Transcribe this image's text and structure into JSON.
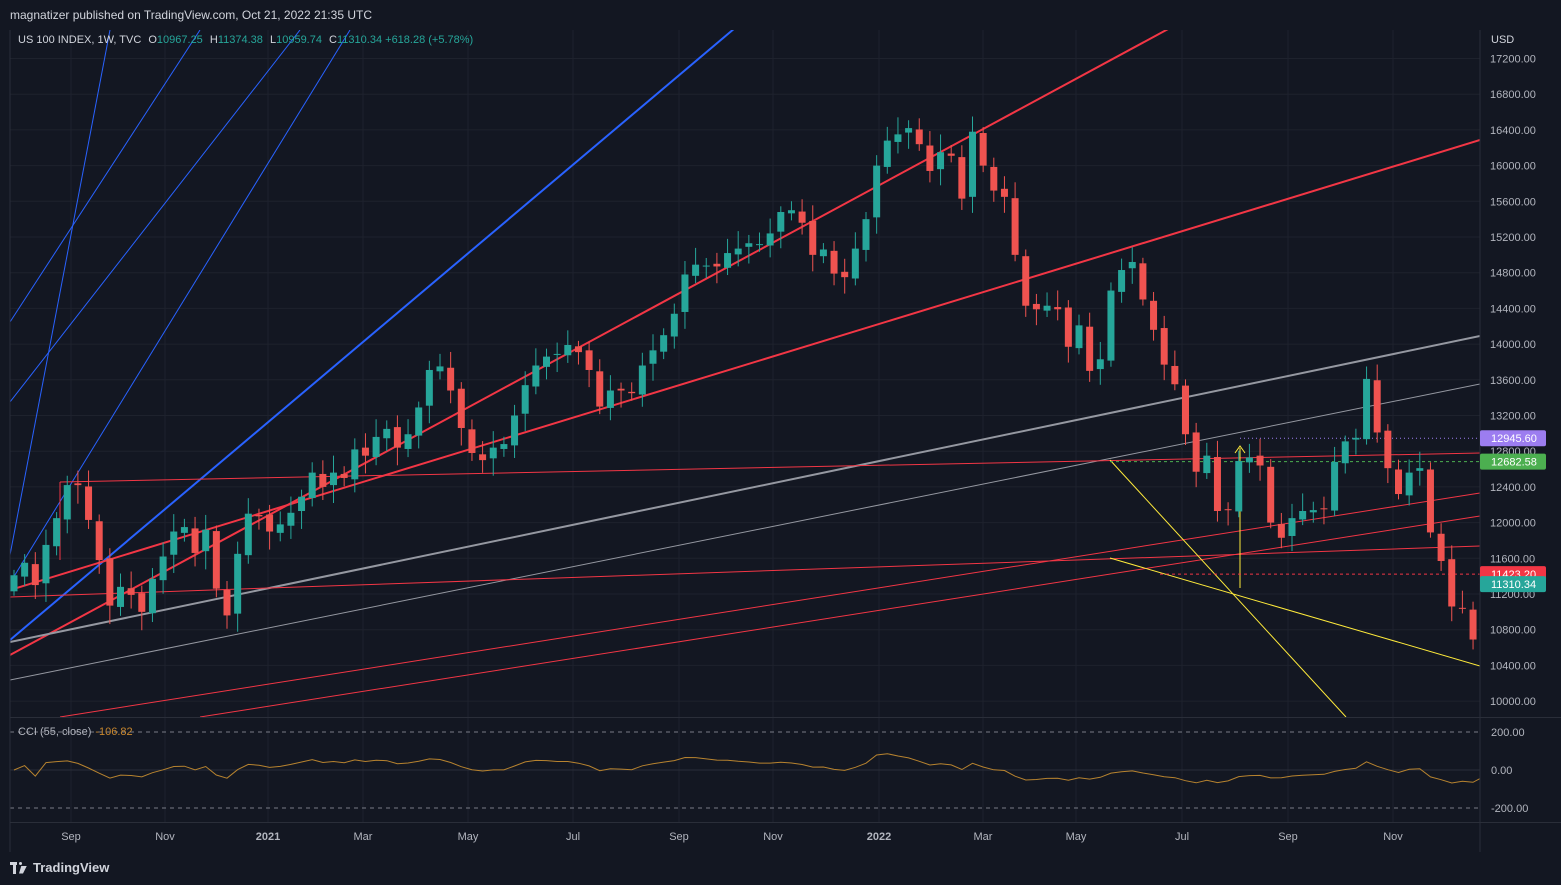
{
  "header": {
    "published": "magnatizer published on TradingView.com, Oct 21, 2022 21:35 UTC"
  },
  "legend": {
    "symbol": "US 100 INDEX, 1W, TVC",
    "o_key": "O",
    "o_val": "10967.25",
    "h_key": "H",
    "h_val": "11374.38",
    "l_key": "L",
    "l_val": "10959.74",
    "c_key": "C",
    "c_val": "11310.34",
    "change": "+618.28 (+5.78%)"
  },
  "cci": {
    "label": "CCI (55, close)",
    "value": "-106.82",
    "ticks": [
      "200.00",
      "0.00",
      "-200.00"
    ],
    "levels": [
      200,
      0,
      -200
    ]
  },
  "currency": "USD",
  "footer": {
    "brand": "TradingView"
  },
  "colors": {
    "up": "#26a69a",
    "down": "#ef5350",
    "blue": "#2962ff",
    "red_line": "#f23645",
    "grey_line": "#9598a1",
    "yellow": "#ffeb3b",
    "cci": "#b7832f"
  },
  "chart_data": {
    "type": "candlestick",
    "timeframe": "1W",
    "x_axis_labels": [
      "Sep",
      "Nov",
      "2021",
      "Mar",
      "May",
      "Jul",
      "Sep",
      "Nov",
      "2022",
      "Mar",
      "May",
      "Jul",
      "Sep",
      "Nov"
    ],
    "y_axis_ticks": [
      17200,
      16800,
      16400,
      16000,
      15600,
      15200,
      14800,
      14400,
      14000,
      13600,
      13200,
      12800,
      12400,
      12000,
      11600,
      11200,
      10800,
      10400,
      10000
    ],
    "ylim": [
      9800,
      17400
    ],
    "price_labels": [
      {
        "value": "12945.60",
        "color": "#9c7df0"
      },
      {
        "value": "12682.58",
        "color": "#4caf50"
      },
      {
        "value": "11423.20",
        "color": "#f23645"
      },
      {
        "value": "11310.34",
        "color": "#26a69a"
      }
    ],
    "weekly_closes": [
      11410,
      11550,
      11300,
      11750,
      12050,
      12420,
      12420,
      12030,
      11580,
      11070,
      11280,
      11190,
      11000,
      11370,
      11620,
      11900,
      11950,
      11660,
      11920,
      11260,
      10960,
      11650,
      12100,
      12070,
      11900,
      11980,
      12110,
      12290,
      12560,
      12400,
      12560,
      12500,
      12820,
      12750,
      12960,
      13050,
      12840,
      12990,
      13290,
      13710,
      13750,
      13480,
      13060,
      12780,
      12700,
      12840,
      12880,
      13200,
      13540,
      13760,
      13860,
      13890,
      13990,
      13910,
      13710,
      13300,
      13480,
      13480,
      13450,
      13760,
      13930,
      14100,
      14340,
      14780,
      14890,
      14880,
      14870,
      15020,
      15070,
      15130,
      15120,
      15240,
      15480,
      15500,
      15360,
      15000,
      15060,
      14790,
      14750,
      15070,
      15400,
      16000,
      16280,
      16350,
      16420,
      16240,
      15940,
      16150,
      16110,
      15630,
      16380,
      16000,
      15720,
      15650,
      15000,
      14430,
      14390,
      14430,
      14390,
      13970,
      14210,
      13700,
      13830,
      14600,
      14830,
      14920,
      14500,
      14160,
      13770,
      13550,
      12990,
      12570,
      12750,
      12130,
      12140,
      12690,
      12730,
      12640,
      12000,
      11830,
      12050,
      12130,
      12140,
      12150,
      12680,
      12910,
      12950,
      13610,
      13010,
      12610,
      12320,
      12560,
      12610,
      11890,
      11570,
      11060,
      11040,
      10690,
      11310
    ]
  }
}
